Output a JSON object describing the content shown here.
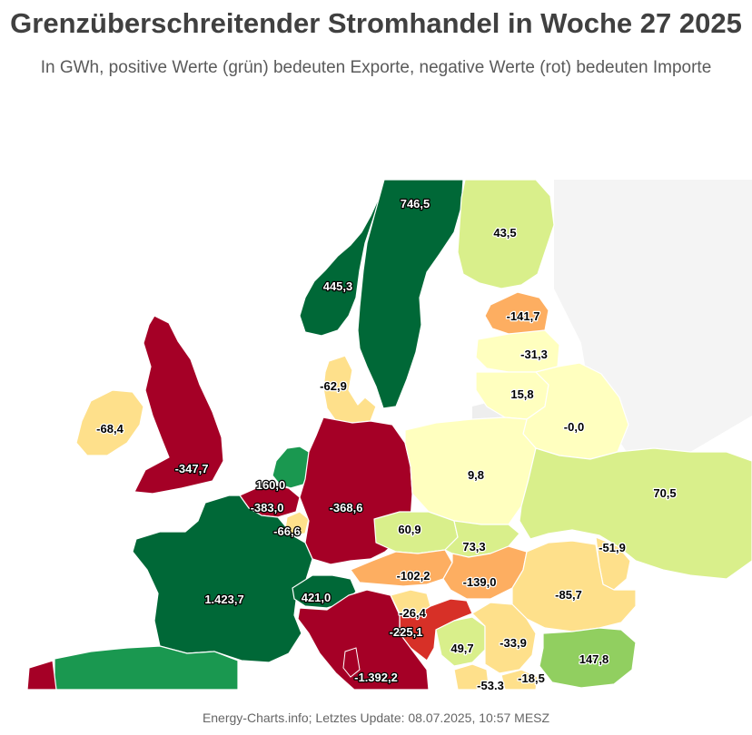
{
  "title": "Grenzüberschreitender Stromhandel in Woche 27 2025",
  "subtitle": "In GWh, positive Werte (grün) bedeuten Exporte, negative Werte (rot) bedeuten Importe",
  "footer": "Energy-Charts.info; Letztes Update: 08.07.2025, 10:57 MESZ",
  "colors": {
    "strong_export": "#006837",
    "export": "#1a9850",
    "mild_export": "#91cf60",
    "light_export": "#d9ef8b",
    "neutral": "#ffffbf",
    "light_import": "#fee08b",
    "mild_import": "#fdae61",
    "import": "#d73027",
    "strong_import": "#a50026"
  },
  "countries": [
    {
      "id": "norway",
      "label": "445,3",
      "color": "#006837"
    },
    {
      "id": "sweden",
      "label": "746,5",
      "color": "#006837"
    },
    {
      "id": "finland",
      "label": "43,5",
      "color": "#d9ef8b"
    },
    {
      "id": "estonia",
      "label": "-141,7",
      "color": "#fdae61"
    },
    {
      "id": "latvia",
      "label": "-31,3",
      "color": "#ffffbf"
    },
    {
      "id": "lithuania",
      "label": "15,8",
      "color": "#ffffbf"
    },
    {
      "id": "belarus",
      "label": "-0,0",
      "color": "#ffffbf"
    },
    {
      "id": "denmark",
      "label": "-62,9",
      "color": "#fee08b"
    },
    {
      "id": "ireland",
      "label": "-68,4",
      "color": "#fee08b"
    },
    {
      "id": "great-britain",
      "label": "-347,7",
      "color": "#a50026"
    },
    {
      "id": "netherlands",
      "label": "160,0",
      "color": "#1a9850"
    },
    {
      "id": "belgium",
      "label": "-383,0",
      "color": "#a50026"
    },
    {
      "id": "luxembourg",
      "label": "-66,6",
      "color": "#fee08b"
    },
    {
      "id": "germany",
      "label": "-368,6",
      "color": "#a50026"
    },
    {
      "id": "poland",
      "label": "9,8",
      "color": "#ffffbf"
    },
    {
      "id": "ukraine",
      "label": "70,5",
      "color": "#d9ef8b"
    },
    {
      "id": "czechia",
      "label": "60,9",
      "color": "#d9ef8b"
    },
    {
      "id": "slovakia",
      "label": "73,3",
      "color": "#d9ef8b"
    },
    {
      "id": "moldova",
      "label": "-51,9",
      "color": "#fee08b"
    },
    {
      "id": "austria",
      "label": "-102,2",
      "color": "#fdae61"
    },
    {
      "id": "hungary",
      "label": "-139,0",
      "color": "#fdae61"
    },
    {
      "id": "romania",
      "label": "-85,7",
      "color": "#fee08b"
    },
    {
      "id": "france",
      "label": "1.423,7",
      "color": "#006837"
    },
    {
      "id": "switzerland",
      "label": "421,0",
      "color": "#006837"
    },
    {
      "id": "slovenia",
      "label": "-26,4",
      "color": "#fee08b"
    },
    {
      "id": "croatia",
      "label": "-225,1",
      "color": "#d73027"
    },
    {
      "id": "bosnia",
      "label": "49,7",
      "color": "#d9ef8b"
    },
    {
      "id": "serbia",
      "label": "-33,9",
      "color": "#fee08b"
    },
    {
      "id": "bulgaria",
      "label": "147,8",
      "color": "#91cf60"
    },
    {
      "id": "italy",
      "label": "-1.392,2",
      "color": "#a50026"
    },
    {
      "id": "montenegro",
      "label": "-53,3",
      "color": "#fee08b"
    },
    {
      "id": "north-macedonia",
      "label": "-18,5",
      "color": "#fee08b"
    },
    {
      "id": "spain",
      "label": "",
      "color": "#1a9850"
    },
    {
      "id": "portugal",
      "label": "",
      "color": "#a50026"
    }
  ]
}
